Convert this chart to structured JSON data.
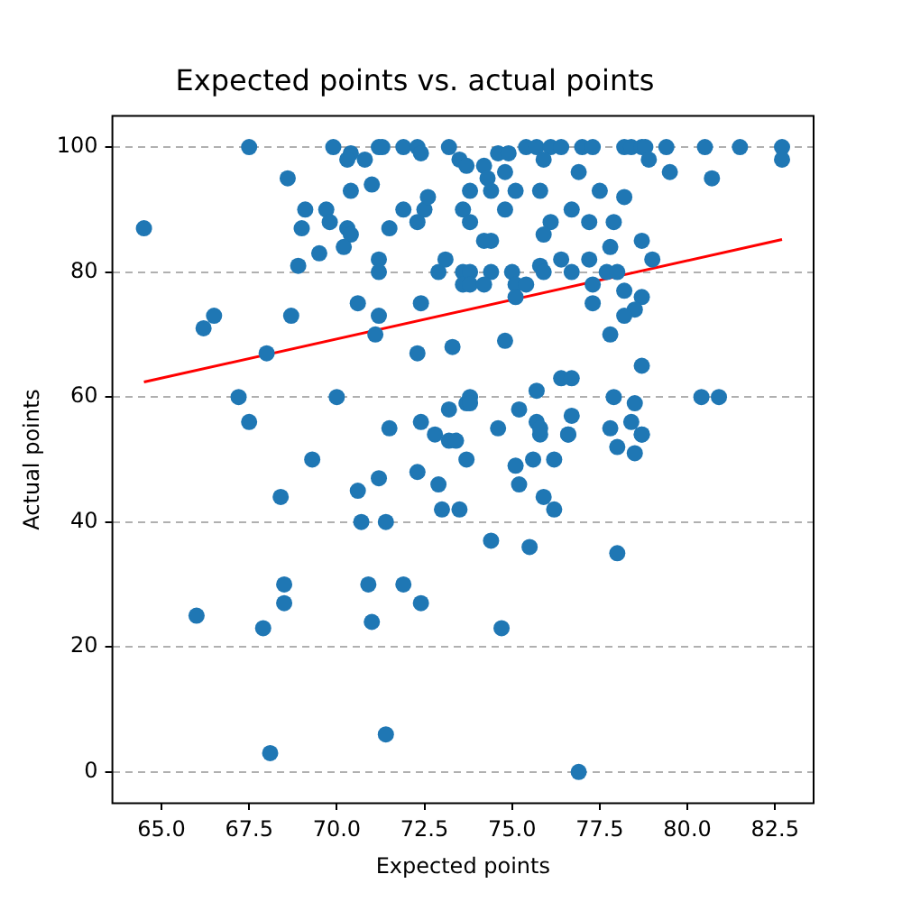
{
  "chart_data": {
    "type": "scatter",
    "title": "Expected points vs. actual points",
    "xlabel": "Expected points",
    "ylabel": "Actual points",
    "xlim": [
      63.6,
      83.6
    ],
    "ylim": [
      -5,
      105
    ],
    "xticks": [
      {
        "value": 65,
        "label": "65.0"
      },
      {
        "value": 67.5,
        "label": "67.5"
      },
      {
        "value": 70,
        "label": "70.0"
      },
      {
        "value": 72.5,
        "label": "72.5"
      },
      {
        "value": 75,
        "label": "75.0"
      },
      {
        "value": 77.5,
        "label": "77.5"
      },
      {
        "value": 80,
        "label": "80.0"
      },
      {
        "value": 82.5,
        "label": "82.5"
      }
    ],
    "yticks": [
      0,
      20,
      40,
      60,
      80,
      100
    ],
    "grid": "y",
    "legend": false,
    "series": [
      {
        "type": "scatter",
        "color": "#1f77b4",
        "marker": "circle",
        "x": [
          64.5,
          67.5,
          68.6,
          69.1,
          69.0,
          69.7,
          69.8,
          69.5,
          68.9,
          69.9,
          70.4,
          70.3,
          70.8,
          71.2,
          71.3,
          71.9,
          72.3,
          72.4,
          73.2,
          70.4,
          71.0,
          71.9,
          72.5,
          72.6,
          72.3,
          71.5,
          70.3,
          70.4,
          70.2,
          71.2,
          71.2,
          72.9,
          73.1,
          73.6,
          73.6,
          70.6,
          71.2,
          72.4,
          68.7,
          66.5,
          66.2,
          68.0,
          71.1,
          72.3,
          73.3,
          67.2,
          70.0,
          67.5,
          71.5,
          72.4,
          73.2,
          72.8,
          73.2,
          73.4,
          73.7,
          69.3,
          68.4,
          70.6,
          71.2,
          72.3,
          72.9,
          73.0,
          73.5,
          70.7,
          71.4,
          68.5,
          68.5,
          66.0,
          67.9,
          70.9,
          71.9,
          72.4,
          71.0,
          71.4,
          68.1,
          73.7,
          75.1,
          75.6,
          76.2,
          75.2,
          75.9,
          76.2,
          74.4,
          75.5,
          78.0,
          74.7,
          76.9,
          75.8,
          76.6,
          78.0,
          78.5,
          78.7,
          75.4,
          75.7,
          76.1,
          76.4,
          77.0,
          77.3,
          78.2,
          78.4,
          78.7,
          78.8,
          79.4,
          80.5,
          81.5,
          82.7,
          73.5,
          73.7,
          74.2,
          74.6,
          74.9,
          74.8,
          74.3,
          75.9,
          78.9,
          79.5,
          80.7,
          82.7,
          76.9,
          73.8,
          74.4,
          75.1,
          75.8,
          77.5,
          78.2,
          73.6,
          73.8,
          74.8,
          76.7,
          76.1,
          75.9,
          77.2,
          77.9,
          74.2,
          74.4,
          77.8,
          78.7,
          79.0,
          76.4,
          77.2,
          75.8,
          73.8,
          74.4,
          75.0,
          73.8,
          74.2,
          75.1,
          75.4,
          75.1,
          75.9,
          76.7,
          77.7,
          78.0,
          77.3,
          77.3,
          78.2,
          78.7,
          78.5,
          78.2,
          77.8,
          74.8,
          78.7,
          76.4,
          76.7,
          75.7,
          73.8,
          73.8,
          77.9,
          78.5,
          80.4,
          80.9,
          75.2,
          76.7,
          74.6,
          75.7,
          75.8,
          76.6,
          77.8,
          78.4,
          78.7
        ],
        "values": [
          87,
          100,
          95,
          90,
          87,
          90,
          88,
          83,
          81,
          100,
          99,
          98,
          98,
          100,
          100,
          100,
          100,
          99,
          100,
          93,
          94,
          90,
          90,
          92,
          88,
          87,
          87,
          86,
          84,
          82,
          80,
          80,
          82,
          80,
          78,
          75,
          73,
          75,
          73,
          73,
          71,
          67,
          70,
          67,
          68,
          60,
          60,
          56,
          55,
          56,
          58,
          54,
          53,
          53,
          59,
          50,
          44,
          45,
          47,
          48,
          46,
          42,
          42,
          40,
          40,
          30,
          27,
          25,
          23,
          30,
          30,
          27,
          24,
          6,
          3,
          50,
          49,
          50,
          50,
          46,
          44,
          42,
          37,
          36,
          35,
          23,
          0,
          54,
          54,
          52,
          51,
          54,
          100,
          100,
          100,
          100,
          100,
          100,
          100,
          100,
          100,
          100,
          100,
          100,
          100,
          100,
          98,
          97,
          97,
          99,
          99,
          96,
          95,
          98,
          98,
          96,
          95,
          98,
          96,
          93,
          93,
          93,
          93,
          93,
          92,
          90,
          88,
          90,
          90,
          88,
          86,
          88,
          88,
          85,
          85,
          84,
          85,
          82,
          82,
          82,
          81,
          80,
          80,
          80,
          78,
          78,
          78,
          78,
          76,
          80,
          80,
          80,
          80,
          78,
          75,
          77,
          76,
          74,
          73,
          70,
          69,
          65,
          63,
          63,
          61,
          60,
          59,
          60,
          59,
          60,
          60,
          58,
          57,
          55,
          56,
          55,
          54,
          55,
          56,
          54
        ]
      },
      {
        "type": "line",
        "color": "#ff0000",
        "marker": "none",
        "x": [
          64.5,
          82.7
        ],
        "values": [
          62.4,
          85.2
        ]
      }
    ]
  }
}
